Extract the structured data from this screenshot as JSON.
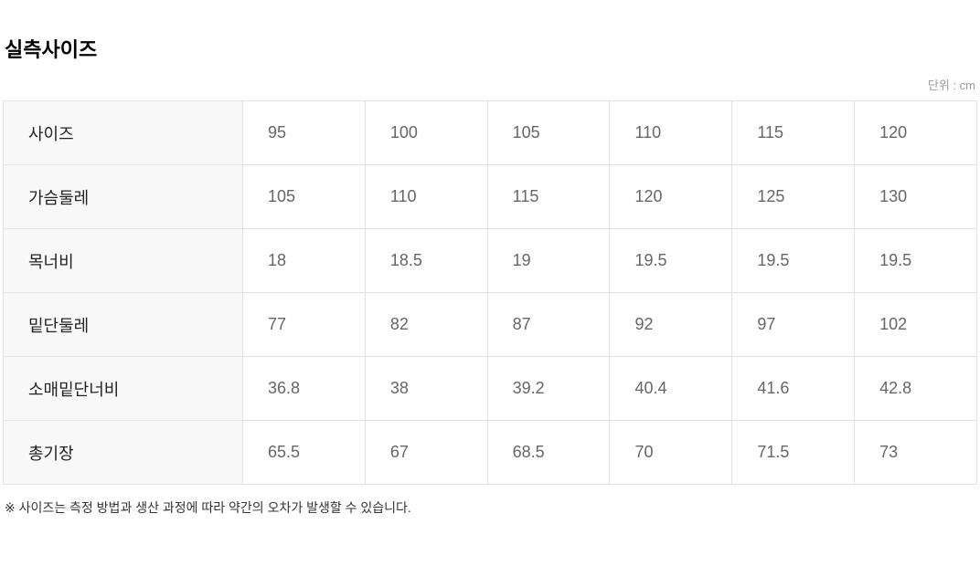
{
  "page": {
    "title": "실측사이즈",
    "unit_label": "단위 : cm",
    "note": "※ 사이즈는 측정 방법과 생산 과정에 따라 약간의 오차가 발생할 수 있습니다."
  },
  "colors": {
    "border": "#e2e2e2",
    "row_header_bg": "#f8f8f8",
    "row_header_text": "#222222",
    "value_text": "#666666",
    "unit_text": "#9b9b9b"
  },
  "chart_data": {
    "type": "table",
    "title": "실측사이즈",
    "unit": "cm",
    "row_headers": [
      "사이즈",
      "가슴둘레",
      "목너비",
      "밑단둘레",
      "소매밑단너비",
      "총기장"
    ],
    "rows": [
      [
        95,
        100,
        105,
        110,
        115,
        120
      ],
      [
        105,
        110,
        115,
        120,
        125,
        130
      ],
      [
        18,
        18.5,
        19,
        19.5,
        19.5,
        19.5
      ],
      [
        77,
        82,
        87,
        92,
        97,
        102
      ],
      [
        36.8,
        38,
        39.2,
        40.4,
        41.6,
        42.8
      ],
      [
        65.5,
        67,
        68.5,
        70,
        71.5,
        73
      ]
    ],
    "note": "※ 사이즈는 측정 방법과 생산 과정에 따라 약간의 오차가 발생할 수 있습니다."
  }
}
